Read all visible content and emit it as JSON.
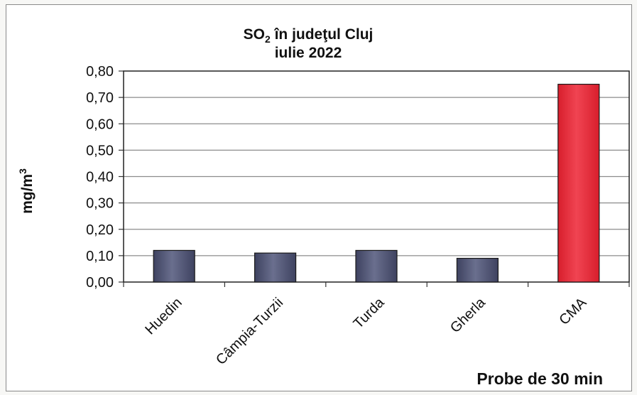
{
  "chart_data": {
    "type": "bar",
    "title_main": "SO",
    "title_sub": "2",
    "title_rest": " în judeţul Cluj",
    "title_line2": "iulie 2022",
    "ylabel_main": "mg/m",
    "ylabel_sup": "3",
    "xlabel": "Probe de 30 min",
    "categories": [
      "Huedin",
      "Câmpia-Turzii",
      "Turda",
      "Gherla",
      "CMA"
    ],
    "values": [
      0.12,
      0.11,
      0.12,
      0.09,
      0.75
    ],
    "bar_colors": [
      "#5a5e78",
      "#5a5e78",
      "#5a5e78",
      "#5a5e78",
      "#e8323c"
    ],
    "ylim": [
      0,
      0.8
    ],
    "yticks": [
      0,
      0.1,
      0.2,
      0.3,
      0.4,
      0.5,
      0.6,
      0.7,
      0.8
    ],
    "ytick_labels": [
      "0,00",
      "0,10",
      "0,20",
      "0,30",
      "0,40",
      "0,50",
      "0,60",
      "0,70",
      "0,80"
    ],
    "grid": true,
    "legend": "none"
  }
}
